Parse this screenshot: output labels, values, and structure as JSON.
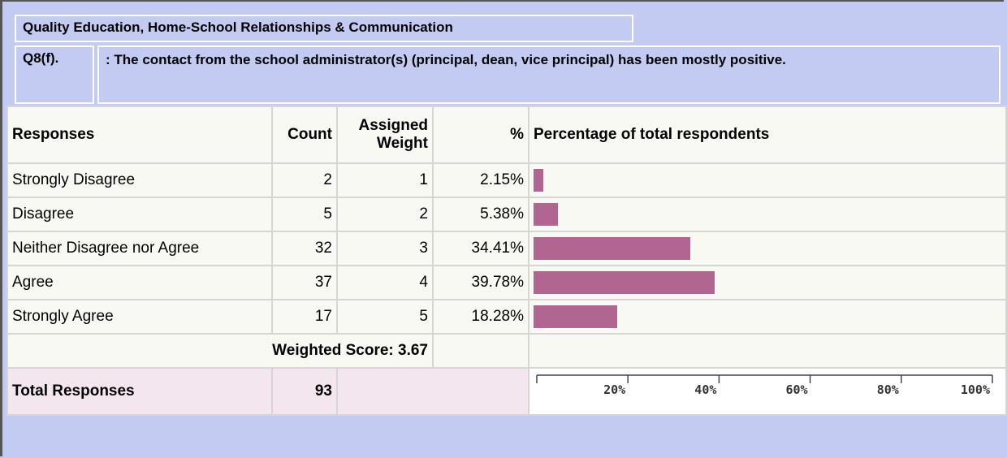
{
  "header": {
    "title": "Quality Education, Home-School Relationships & Communication"
  },
  "question": {
    "id": "Q8(f).",
    "text": ": The contact from the school administrator(s) (principal, dean, vice principal) has been mostly positive."
  },
  "table": {
    "columns": [
      "Responses",
      "Count",
      "Assigned Weight",
      "%",
      "Percentage of total respondents"
    ],
    "rows": [
      {
        "response": "Strongly Disagree",
        "count": 2,
        "weight": 1,
        "percent": {
          "value": 2.15,
          "label": "2.15%"
        }
      },
      {
        "response": "Disagree",
        "count": 5,
        "weight": 2,
        "percent": {
          "value": 5.38,
          "label": "5.38%"
        }
      },
      {
        "response": "Neither Disagree nor Agree",
        "count": 32,
        "weight": 3,
        "percent": {
          "value": 34.41,
          "label": "34.41%"
        }
      },
      {
        "response": "Agree",
        "count": 37,
        "weight": 4,
        "percent": {
          "value": 39.78,
          "label": "39.78%"
        }
      },
      {
        "response": "Strongly Agree",
        "count": 17,
        "weight": 5,
        "percent": {
          "value": 18.28,
          "label": "18.28%"
        }
      }
    ],
    "weighted_score_label": "Weighted Score:",
    "weighted_score": 3.67,
    "total_label": "Total Responses",
    "total": 93,
    "bar_color": "#b06690"
  },
  "axis": {
    "xlim": [
      0,
      100
    ],
    "xticks": [
      {
        "value": 20,
        "label": "20%"
      },
      {
        "value": 40,
        "label": "40%"
      },
      {
        "value": 60,
        "label": "60%"
      },
      {
        "value": 80,
        "label": "80%"
      },
      {
        "value": 100,
        "label": "100%"
      }
    ]
  }
}
